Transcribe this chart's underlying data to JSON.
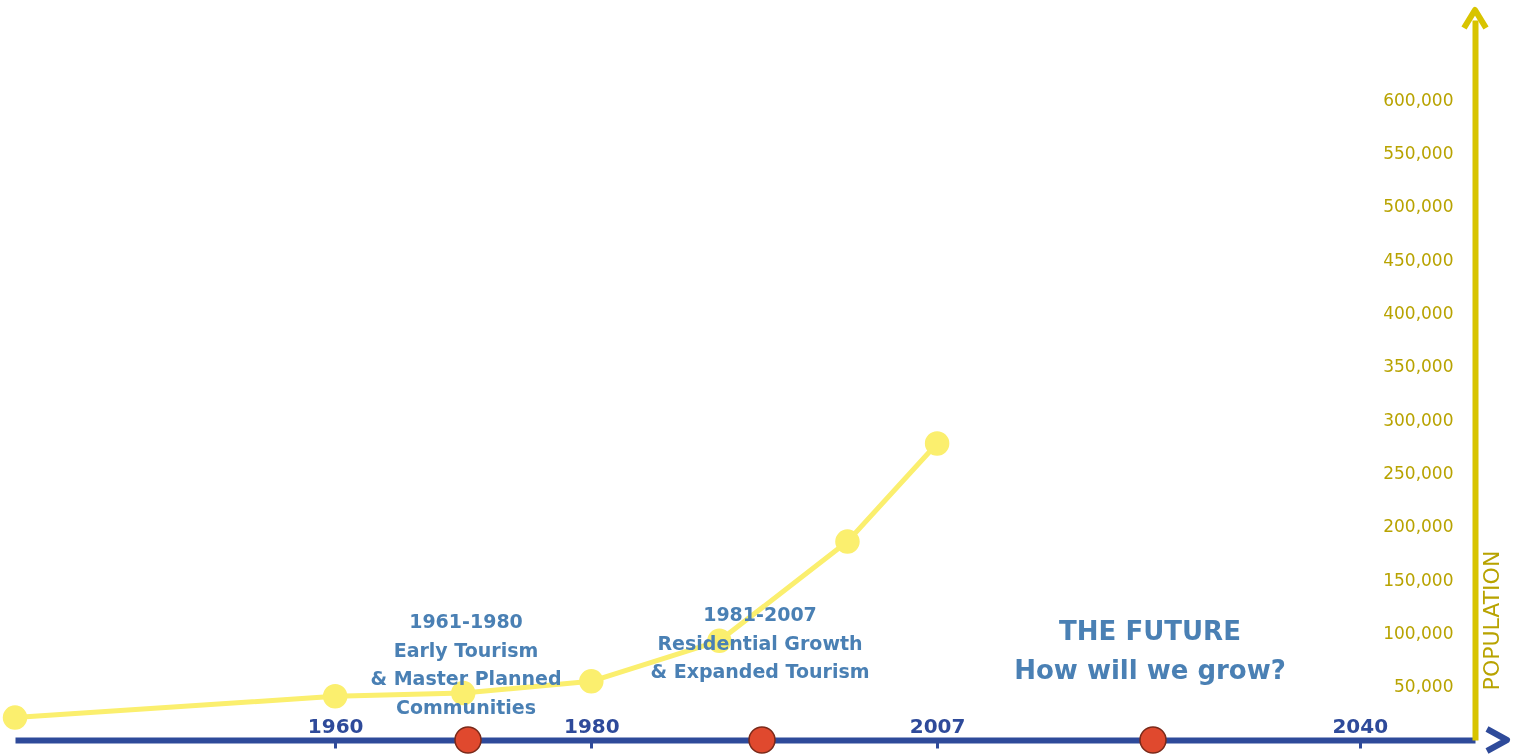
{
  "chart_data": {
    "type": "line",
    "ylabel": "POPULATION",
    "x": [
      1935,
      1960,
      1970,
      1980,
      1990,
      2000,
      2007
    ],
    "series": [
      {
        "color": "#fbef6e",
        "values": [
          21000,
          41000,
          44000,
          55000,
          93000,
          186000,
          278000
        ]
      }
    ],
    "xlim": [
      1935,
      2049
    ],
    "xticks": [
      1960,
      1980,
      2007,
      2040
    ],
    "ylim": [
      0,
      675000
    ],
    "yticks": [
      {
        "value": 50000,
        "label": "50,000"
      },
      {
        "value": 100000,
        "label": "100,000"
      },
      {
        "value": 150000,
        "label": "150,000"
      },
      {
        "value": 200000,
        "label": "200,000"
      },
      {
        "value": 250000,
        "label": "250,000"
      },
      {
        "value": 300000,
        "label": "300,000"
      },
      {
        "value": 350000,
        "label": "350,000"
      },
      {
        "value": 400000,
        "label": "400,000"
      },
      {
        "value": 450000,
        "label": "450,000"
      },
      {
        "value": 500000,
        "label": "500,000"
      },
      {
        "value": 550000,
        "label": "550,000"
      },
      {
        "value": 600000,
        "label": "600,000"
      }
    ],
    "marker": "circle",
    "grid": false,
    "annotations": [
      "1961-1980\nEarly Tourism\n& Master Planned\nCommunities",
      "1981-2007\nResidential Growth\n& Expanded Tourism",
      "THE FUTURE\nHow will we grow?"
    ]
  }
}
